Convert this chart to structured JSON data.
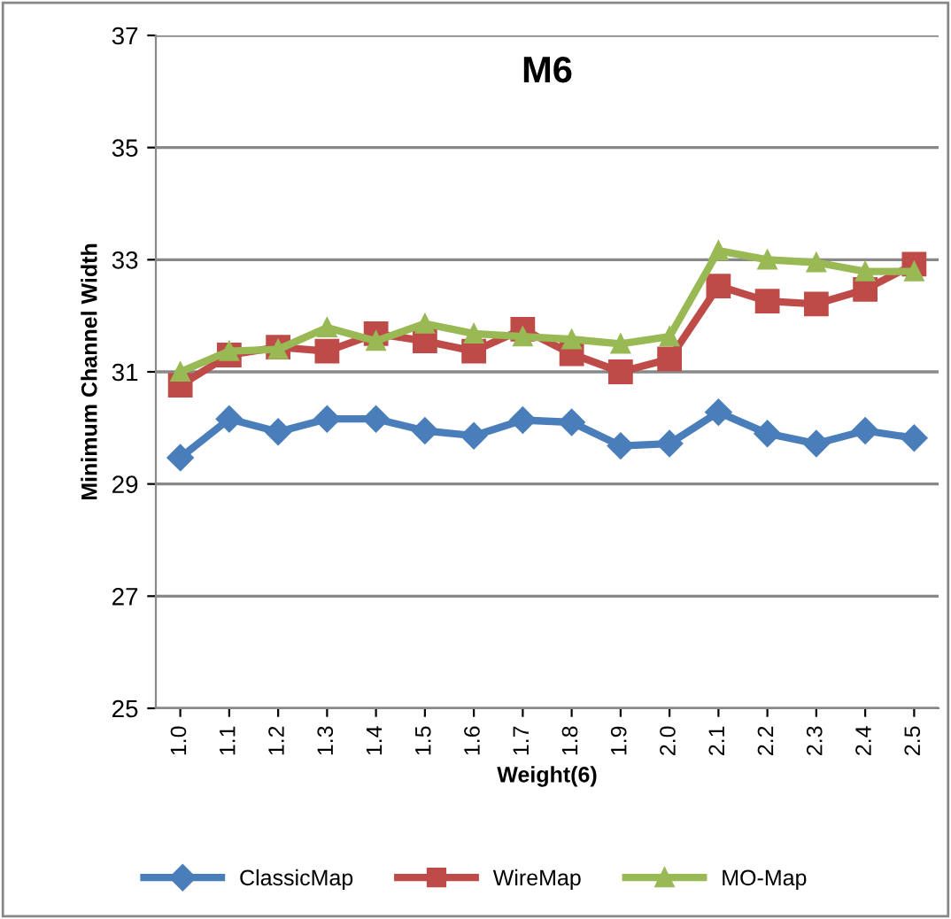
{
  "chart_data": {
    "type": "line",
    "title": "M6",
    "xlabel": "Weight(6)",
    "ylabel": "Minimum Channel Width",
    "categories": [
      "1.0",
      "1.1",
      "1.2",
      "1.3",
      "1.4",
      "1.5",
      "1.6",
      "1.7",
      "1.8",
      "1.9",
      "2.0",
      "2.1",
      "2.2",
      "2.3",
      "2.4",
      "2.5"
    ],
    "series": [
      {
        "name": "ClassicMap",
        "color": "#4a7ebb",
        "marker": "diamond",
        "values": [
          29.47,
          30.16,
          29.93,
          30.16,
          30.16,
          29.95,
          29.86,
          30.14,
          30.1,
          29.68,
          29.72,
          30.28,
          29.9,
          29.72,
          29.95,
          29.82
        ]
      },
      {
        "name": "WireMap",
        "color": "#be4b48",
        "marker": "square",
        "values": [
          30.76,
          31.3,
          31.44,
          31.37,
          31.68,
          31.55,
          31.37,
          31.76,
          31.32,
          31.0,
          31.23,
          32.53,
          32.26,
          32.21,
          32.47,
          32.92
        ]
      },
      {
        "name": "MO-Map",
        "color": "#98b954",
        "marker": "triangle",
        "values": [
          31.0,
          31.37,
          31.4,
          31.79,
          31.55,
          31.86,
          31.68,
          31.63,
          31.58,
          31.5,
          31.63,
          33.16,
          33.0,
          32.95,
          32.79,
          32.79
        ]
      }
    ],
    "ylim": [
      25,
      37
    ],
    "yticks": [
      25,
      27,
      29,
      31,
      33,
      35,
      37
    ],
    "grid": "y",
    "legend": "bottom"
  }
}
